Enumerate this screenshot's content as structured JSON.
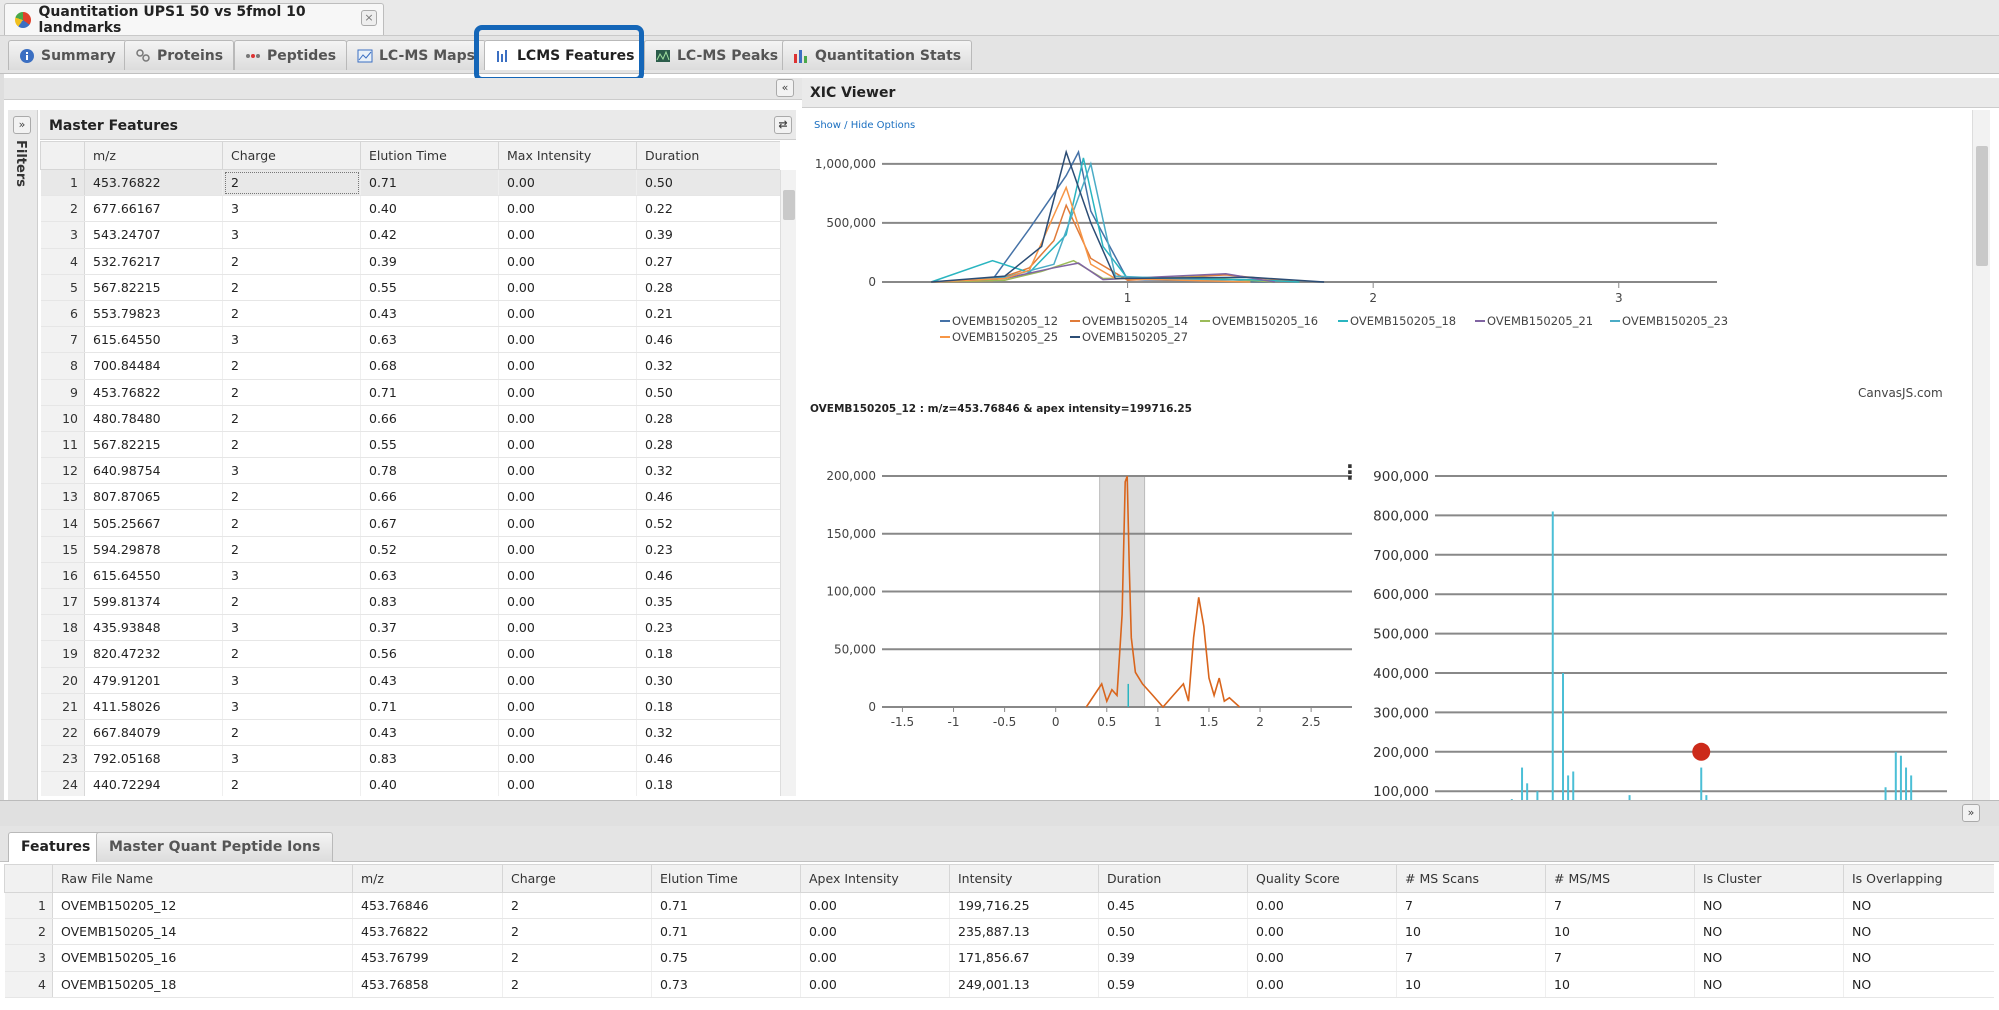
{
  "doc_tab": {
    "title": "Quantitation UPS1 50 vs 5fmol 10 landmarks",
    "close": "×"
  },
  "module_tabs": [
    {
      "label": "Summary",
      "icon": "info-icon"
    },
    {
      "label": "Proteins",
      "icon": "proteins-icon"
    },
    {
      "label": "Peptides",
      "icon": "peptides-icon"
    },
    {
      "label": "LC-MS Maps",
      "icon": "map-icon"
    },
    {
      "label": "LCMS Features",
      "icon": "features-icon",
      "active": true
    },
    {
      "label": "LC-MS Peaks",
      "icon": "peaks-icon"
    },
    {
      "label": "Quantitation Stats",
      "icon": "stats-icon"
    }
  ],
  "master_features": {
    "title": "Master Features",
    "filters_label": "Filters",
    "columns": [
      "m/z",
      "Charge",
      "Elution Time",
      "Max Intensity",
      "Duration"
    ],
    "rows": [
      [
        "1",
        "453.76822",
        "2",
        "0.71",
        "0.00",
        "0.50"
      ],
      [
        "2",
        "677.66167",
        "3",
        "0.40",
        "0.00",
        "0.22"
      ],
      [
        "3",
        "543.24707",
        "3",
        "0.42",
        "0.00",
        "0.39"
      ],
      [
        "4",
        "532.76217",
        "2",
        "0.39",
        "0.00",
        "0.27"
      ],
      [
        "5",
        "567.82215",
        "2",
        "0.55",
        "0.00",
        "0.28"
      ],
      [
        "6",
        "553.79823",
        "2",
        "0.43",
        "0.00",
        "0.21"
      ],
      [
        "7",
        "615.64550",
        "3",
        "0.63",
        "0.00",
        "0.46"
      ],
      [
        "8",
        "700.84484",
        "2",
        "0.68",
        "0.00",
        "0.32"
      ],
      [
        "9",
        "453.76822",
        "2",
        "0.71",
        "0.00",
        "0.50"
      ],
      [
        "10",
        "480.78480",
        "2",
        "0.66",
        "0.00",
        "0.28"
      ],
      [
        "11",
        "567.82215",
        "2",
        "0.55",
        "0.00",
        "0.28"
      ],
      [
        "12",
        "640.98754",
        "3",
        "0.78",
        "0.00",
        "0.32"
      ],
      [
        "13",
        "807.87065",
        "2",
        "0.66",
        "0.00",
        "0.46"
      ],
      [
        "14",
        "505.25667",
        "2",
        "0.67",
        "0.00",
        "0.52"
      ],
      [
        "15",
        "594.29878",
        "2",
        "0.52",
        "0.00",
        "0.23"
      ],
      [
        "16",
        "615.64550",
        "3",
        "0.63",
        "0.00",
        "0.46"
      ],
      [
        "17",
        "599.81374",
        "2",
        "0.83",
        "0.00",
        "0.35"
      ],
      [
        "18",
        "435.93848",
        "3",
        "0.37",
        "0.00",
        "0.23"
      ],
      [
        "19",
        "820.47232",
        "2",
        "0.56",
        "0.00",
        "0.18"
      ],
      [
        "20",
        "479.91201",
        "3",
        "0.43",
        "0.00",
        "0.30"
      ],
      [
        "21",
        "411.58026",
        "3",
        "0.71",
        "0.00",
        "0.18"
      ],
      [
        "22",
        "667.84079",
        "2",
        "0.43",
        "0.00",
        "0.32"
      ],
      [
        "23",
        "792.05168",
        "3",
        "0.83",
        "0.00",
        "0.46"
      ],
      [
        "24",
        "440.72294",
        "2",
        "0.40",
        "0.00",
        "0.18"
      ]
    ]
  },
  "xic_viewer": {
    "title": "XIC Viewer",
    "show_hide": "Show / Hide Options",
    "credit": "CanvasJS.com",
    "caption": "OVEMB150205_12 : m/z=453.76846 & apex intensity=199716.25",
    "menu": "⋮"
  },
  "chart_data": [
    {
      "type": "line",
      "xlim": [
        0,
        3.4
      ],
      "ylim": [
        0,
        1100000
      ],
      "y_ticks": [
        "1,000,000",
        "500,000",
        "0"
      ],
      "y_tick_values": [
        1000000,
        500000,
        0
      ],
      "x_ticks": [
        "1",
        "2",
        "3"
      ],
      "x_tick_values": [
        1,
        2,
        3
      ],
      "legend": "bottom",
      "series": [
        {
          "name": "OVEMB150205_12",
          "color": "#4572a7",
          "x": [
            0.2,
            0.45,
            0.6,
            0.75,
            0.8,
            0.85,
            1.0,
            1.4,
            1.6
          ],
          "y": [
            0,
            20000,
            450000,
            900000,
            1100000,
            600000,
            20000,
            8000,
            0
          ]
        },
        {
          "name": "OVEMB150205_14",
          "color": "#e07b39",
          "x": [
            0.2,
            0.45,
            0.6,
            0.7,
            0.75,
            0.85,
            1.0,
            1.4,
            1.7
          ],
          "y": [
            0,
            10000,
            120000,
            350000,
            650000,
            200000,
            15000,
            60000,
            0
          ]
        },
        {
          "name": "OVEMB150205_16",
          "color": "#9bbb59",
          "x": [
            0.2,
            0.5,
            0.65,
            0.78,
            0.9,
            1.3,
            1.6
          ],
          "y": [
            0,
            15000,
            90000,
            180000,
            30000,
            40000,
            0
          ]
        },
        {
          "name": "OVEMB150205_18",
          "color": "#2ab5c0",
          "x": [
            0.2,
            0.45,
            0.6,
            0.75,
            0.82,
            0.9,
            1.0,
            1.5,
            1.7
          ],
          "y": [
            0,
            180000,
            80000,
            400000,
            1050000,
            300000,
            30000,
            20000,
            0
          ]
        },
        {
          "name": "OVEMB150205_21",
          "color": "#8064a2",
          "x": [
            0.2,
            0.5,
            0.7,
            0.8,
            0.9,
            1.4,
            1.6
          ],
          "y": [
            0,
            30000,
            120000,
            160000,
            20000,
            70000,
            0
          ]
        },
        {
          "name": "OVEMB150205_23",
          "color": "#4bacc6",
          "x": [
            0.2,
            0.5,
            0.7,
            0.85,
            0.95,
            1.5
          ],
          "y": [
            0,
            40000,
            150000,
            1000000,
            50000,
            0
          ]
        },
        {
          "name": "OVEMB150205_25",
          "color": "#f79646",
          "x": [
            0.2,
            0.5,
            0.6,
            0.75,
            0.85,
            0.95,
            1.5
          ],
          "y": [
            0,
            30000,
            100000,
            800000,
            150000,
            30000,
            0
          ]
        },
        {
          "name": "OVEMB150205_27",
          "color": "#2c4d75",
          "x": [
            0.2,
            0.5,
            0.65,
            0.75,
            0.85,
            0.95,
            1.5,
            1.8
          ],
          "y": [
            0,
            50000,
            300000,
            1100000,
            500000,
            30000,
            40000,
            0
          ]
        }
      ]
    },
    {
      "type": "line",
      "xlim": [
        -1.7,
        2.9
      ],
      "ylim": [
        0,
        200000
      ],
      "y_ticks": [
        "200,000",
        "150,000",
        "100,000",
        "50,000",
        "0"
      ],
      "y_tick_values": [
        200000,
        150000,
        100000,
        50000,
        0
      ],
      "x_ticks": [
        "-1.5",
        "-1",
        "-0.5",
        "0",
        "0.5",
        "1",
        "1.5",
        "2",
        "2.5"
      ],
      "x_tick_values": [
        -1.5,
        -1,
        -0.5,
        0,
        0.5,
        1,
        1.5,
        2,
        2.5
      ],
      "highlight_band": [
        0.43,
        0.87
      ],
      "marker_x": 0.71,
      "series": [
        {
          "name": "OVEMB150205_12",
          "color": "#d9651c",
          "x": [
            0.3,
            0.45,
            0.5,
            0.55,
            0.6,
            0.65,
            0.68,
            0.7,
            0.72,
            0.74,
            0.78,
            0.85,
            0.95,
            1.05,
            1.15,
            1.25,
            1.3,
            1.35,
            1.4,
            1.45,
            1.5,
            1.55,
            1.6,
            1.65,
            1.7,
            1.8
          ],
          "y": [
            0,
            20000,
            5000,
            15000,
            10000,
            80000,
            195000,
            199716,
            120000,
            60000,
            30000,
            20000,
            10000,
            0,
            10000,
            20000,
            5000,
            60000,
            95000,
            70000,
            25000,
            10000,
            25000,
            5000,
            8000,
            0
          ]
        }
      ]
    },
    {
      "type": "bar",
      "ylim": [
        0,
        900000
      ],
      "y_ticks": [
        "900,000",
        "800,000",
        "700,000",
        "600,000",
        "500,000",
        "400,000",
        "300,000",
        "200,000",
        "100,000"
      ],
      "y_tick_values": [
        900000,
        800000,
        700000,
        600000,
        500000,
        400000,
        300000,
        200000,
        100000
      ],
      "point_marker": {
        "x": 0.52,
        "y": 200000,
        "color": "#cc2a1a"
      },
      "bars": [
        {
          "x": 0.02,
          "y": 60000
        },
        {
          "x": 0.15,
          "y": 80000
        },
        {
          "x": 0.17,
          "y": 160000
        },
        {
          "x": 0.18,
          "y": 120000
        },
        {
          "x": 0.2,
          "y": 100000
        },
        {
          "x": 0.23,
          "y": 810000
        },
        {
          "x": 0.25,
          "y": 400000
        },
        {
          "x": 0.26,
          "y": 140000
        },
        {
          "x": 0.27,
          "y": 150000
        },
        {
          "x": 0.38,
          "y": 90000
        },
        {
          "x": 0.52,
          "y": 160000
        },
        {
          "x": 0.53,
          "y": 90000
        },
        {
          "x": 0.88,
          "y": 110000
        },
        {
          "x": 0.9,
          "y": 200000
        },
        {
          "x": 0.91,
          "y": 190000
        },
        {
          "x": 0.92,
          "y": 160000
        },
        {
          "x": 0.93,
          "y": 140000
        }
      ]
    }
  ],
  "bottom": {
    "tabs": [
      {
        "label": "Features",
        "active": true
      },
      {
        "label": "Master Quant Peptide Ions"
      }
    ],
    "columns": [
      "Raw File Name",
      "m/z",
      "Charge",
      "Elution Time",
      "Apex Intensity",
      "Intensity",
      "Duration",
      "Quality Score",
      "# MS Scans",
      "# MS/MS",
      "Is Cluster",
      "Is Overlapping"
    ],
    "rows": [
      [
        "1",
        "OVEMB150205_12",
        "453.76846",
        "2",
        "0.71",
        "0.00",
        "199,716.25",
        "0.45",
        "0.00",
        "7",
        "7",
        "NO",
        "NO"
      ],
      [
        "2",
        "OVEMB150205_14",
        "453.76822",
        "2",
        "0.71",
        "0.00",
        "235,887.13",
        "0.50",
        "0.00",
        "10",
        "10",
        "NO",
        "NO"
      ],
      [
        "3",
        "OVEMB150205_16",
        "453.76799",
        "2",
        "0.75",
        "0.00",
        "171,856.67",
        "0.39",
        "0.00",
        "7",
        "7",
        "NO",
        "NO"
      ],
      [
        "4",
        "OVEMB150205_18",
        "453.76858",
        "2",
        "0.73",
        "0.00",
        "249,001.13",
        "0.59",
        "0.00",
        "10",
        "10",
        "NO",
        "NO"
      ]
    ]
  }
}
